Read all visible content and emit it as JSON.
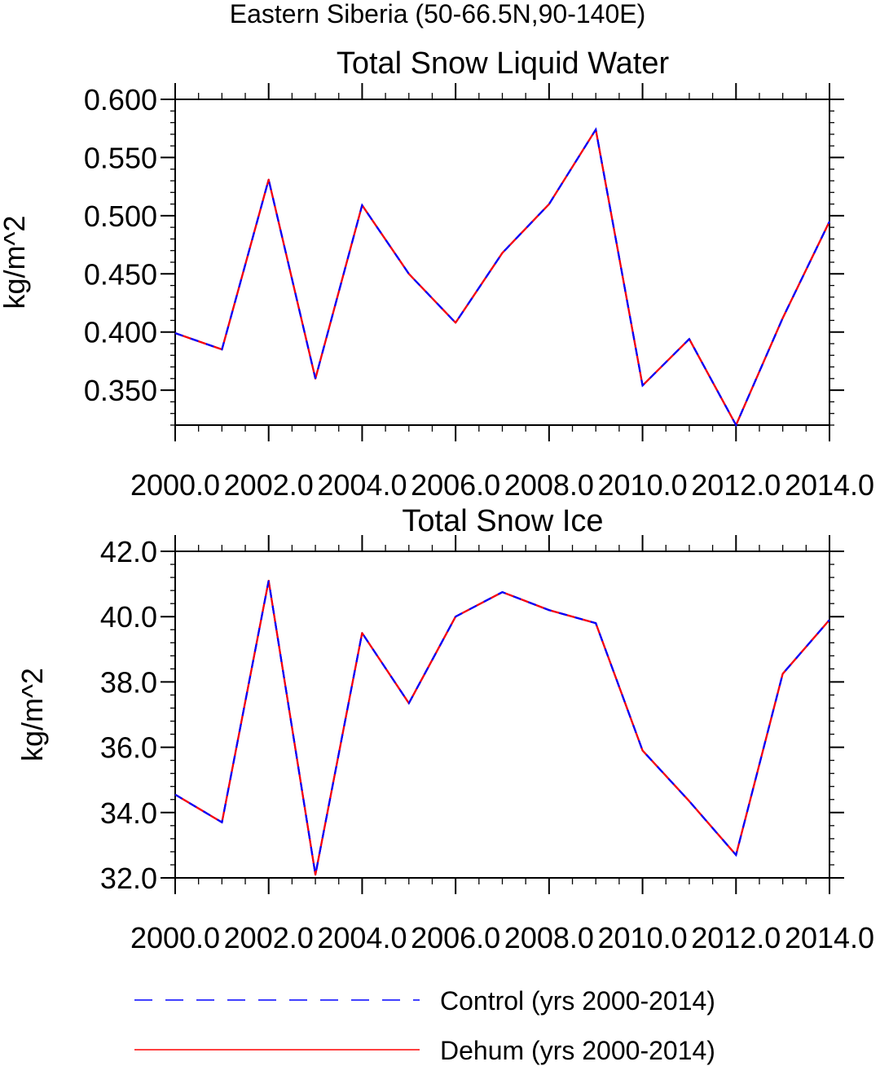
{
  "figure": {
    "title": "Eastern Siberia (50-66.5N,90-140E)"
  },
  "chart_data": [
    {
      "type": "line",
      "title": "Total Snow Liquid Water",
      "xlabel": "",
      "ylabel": "kg/m^2",
      "xlim": [
        2000,
        2014
      ],
      "ylim": [
        0.32,
        0.6
      ],
      "x": [
        2000,
        2001,
        2002,
        2003,
        2004,
        2005,
        2006,
        2007,
        2008,
        2009,
        2010,
        2011,
        2012,
        2013,
        2014
      ],
      "xticks": [
        "2000.0",
        "2002.0",
        "2004.0",
        "2006.0",
        "2008.0",
        "2010.0",
        "2012.0",
        "2014.0"
      ],
      "yticks": [
        "0.350",
        "0.400",
        "0.450",
        "0.500",
        "0.550",
        "0.600"
      ],
      "series": [
        {
          "name": "Control (yrs 2000-2014)",
          "color": "#0000ff",
          "dash": "dashed",
          "values": [
            0.399,
            0.385,
            0.531,
            0.36,
            0.509,
            0.45,
            0.408,
            0.468,
            0.51,
            0.574,
            0.354,
            0.394,
            0.32,
            0.412,
            0.495
          ]
        },
        {
          "name": "Dehum (yrs 2000-2014)",
          "color": "#ff0000",
          "dash": "solid",
          "values": [
            0.399,
            0.385,
            0.531,
            0.36,
            0.509,
            0.45,
            0.408,
            0.468,
            0.51,
            0.574,
            0.354,
            0.394,
            0.32,
            0.412,
            0.495
          ]
        }
      ]
    },
    {
      "type": "line",
      "title": "Total Snow Ice",
      "xlabel": "",
      "ylabel": "kg/m^2",
      "xlim": [
        2000,
        2014
      ],
      "ylim": [
        32.0,
        42.0
      ],
      "x": [
        2000,
        2001,
        2002,
        2003,
        2004,
        2005,
        2006,
        2007,
        2008,
        2009,
        2010,
        2011,
        2012,
        2013,
        2014
      ],
      "xticks": [
        "2000.0",
        "2002.0",
        "2004.0",
        "2006.0",
        "2008.0",
        "2010.0",
        "2012.0",
        "2014.0"
      ],
      "yticks": [
        "32.0",
        "34.0",
        "36.0",
        "38.0",
        "40.0",
        "42.0"
      ],
      "series": [
        {
          "name": "Control (yrs 2000-2014)",
          "color": "#0000ff",
          "dash": "dashed",
          "values": [
            34.55,
            33.7,
            41.1,
            32.1,
            39.5,
            37.35,
            40.0,
            40.75,
            40.2,
            39.8,
            35.9,
            34.35,
            32.7,
            38.25,
            39.9
          ]
        },
        {
          "name": "Dehum (yrs 2000-2014)",
          "color": "#ff0000",
          "dash": "solid",
          "values": [
            34.55,
            33.7,
            41.1,
            32.1,
            39.5,
            37.35,
            40.0,
            40.75,
            40.2,
            39.8,
            35.9,
            34.35,
            32.7,
            38.25,
            39.9
          ]
        }
      ]
    }
  ],
  "legend": {
    "items": [
      {
        "label": "Control (yrs 2000-2014)",
        "color": "#0000ff",
        "dash": "dashed"
      },
      {
        "label": "Dehum (yrs 2000-2014)",
        "color": "#ff0000",
        "dash": "solid"
      }
    ]
  }
}
